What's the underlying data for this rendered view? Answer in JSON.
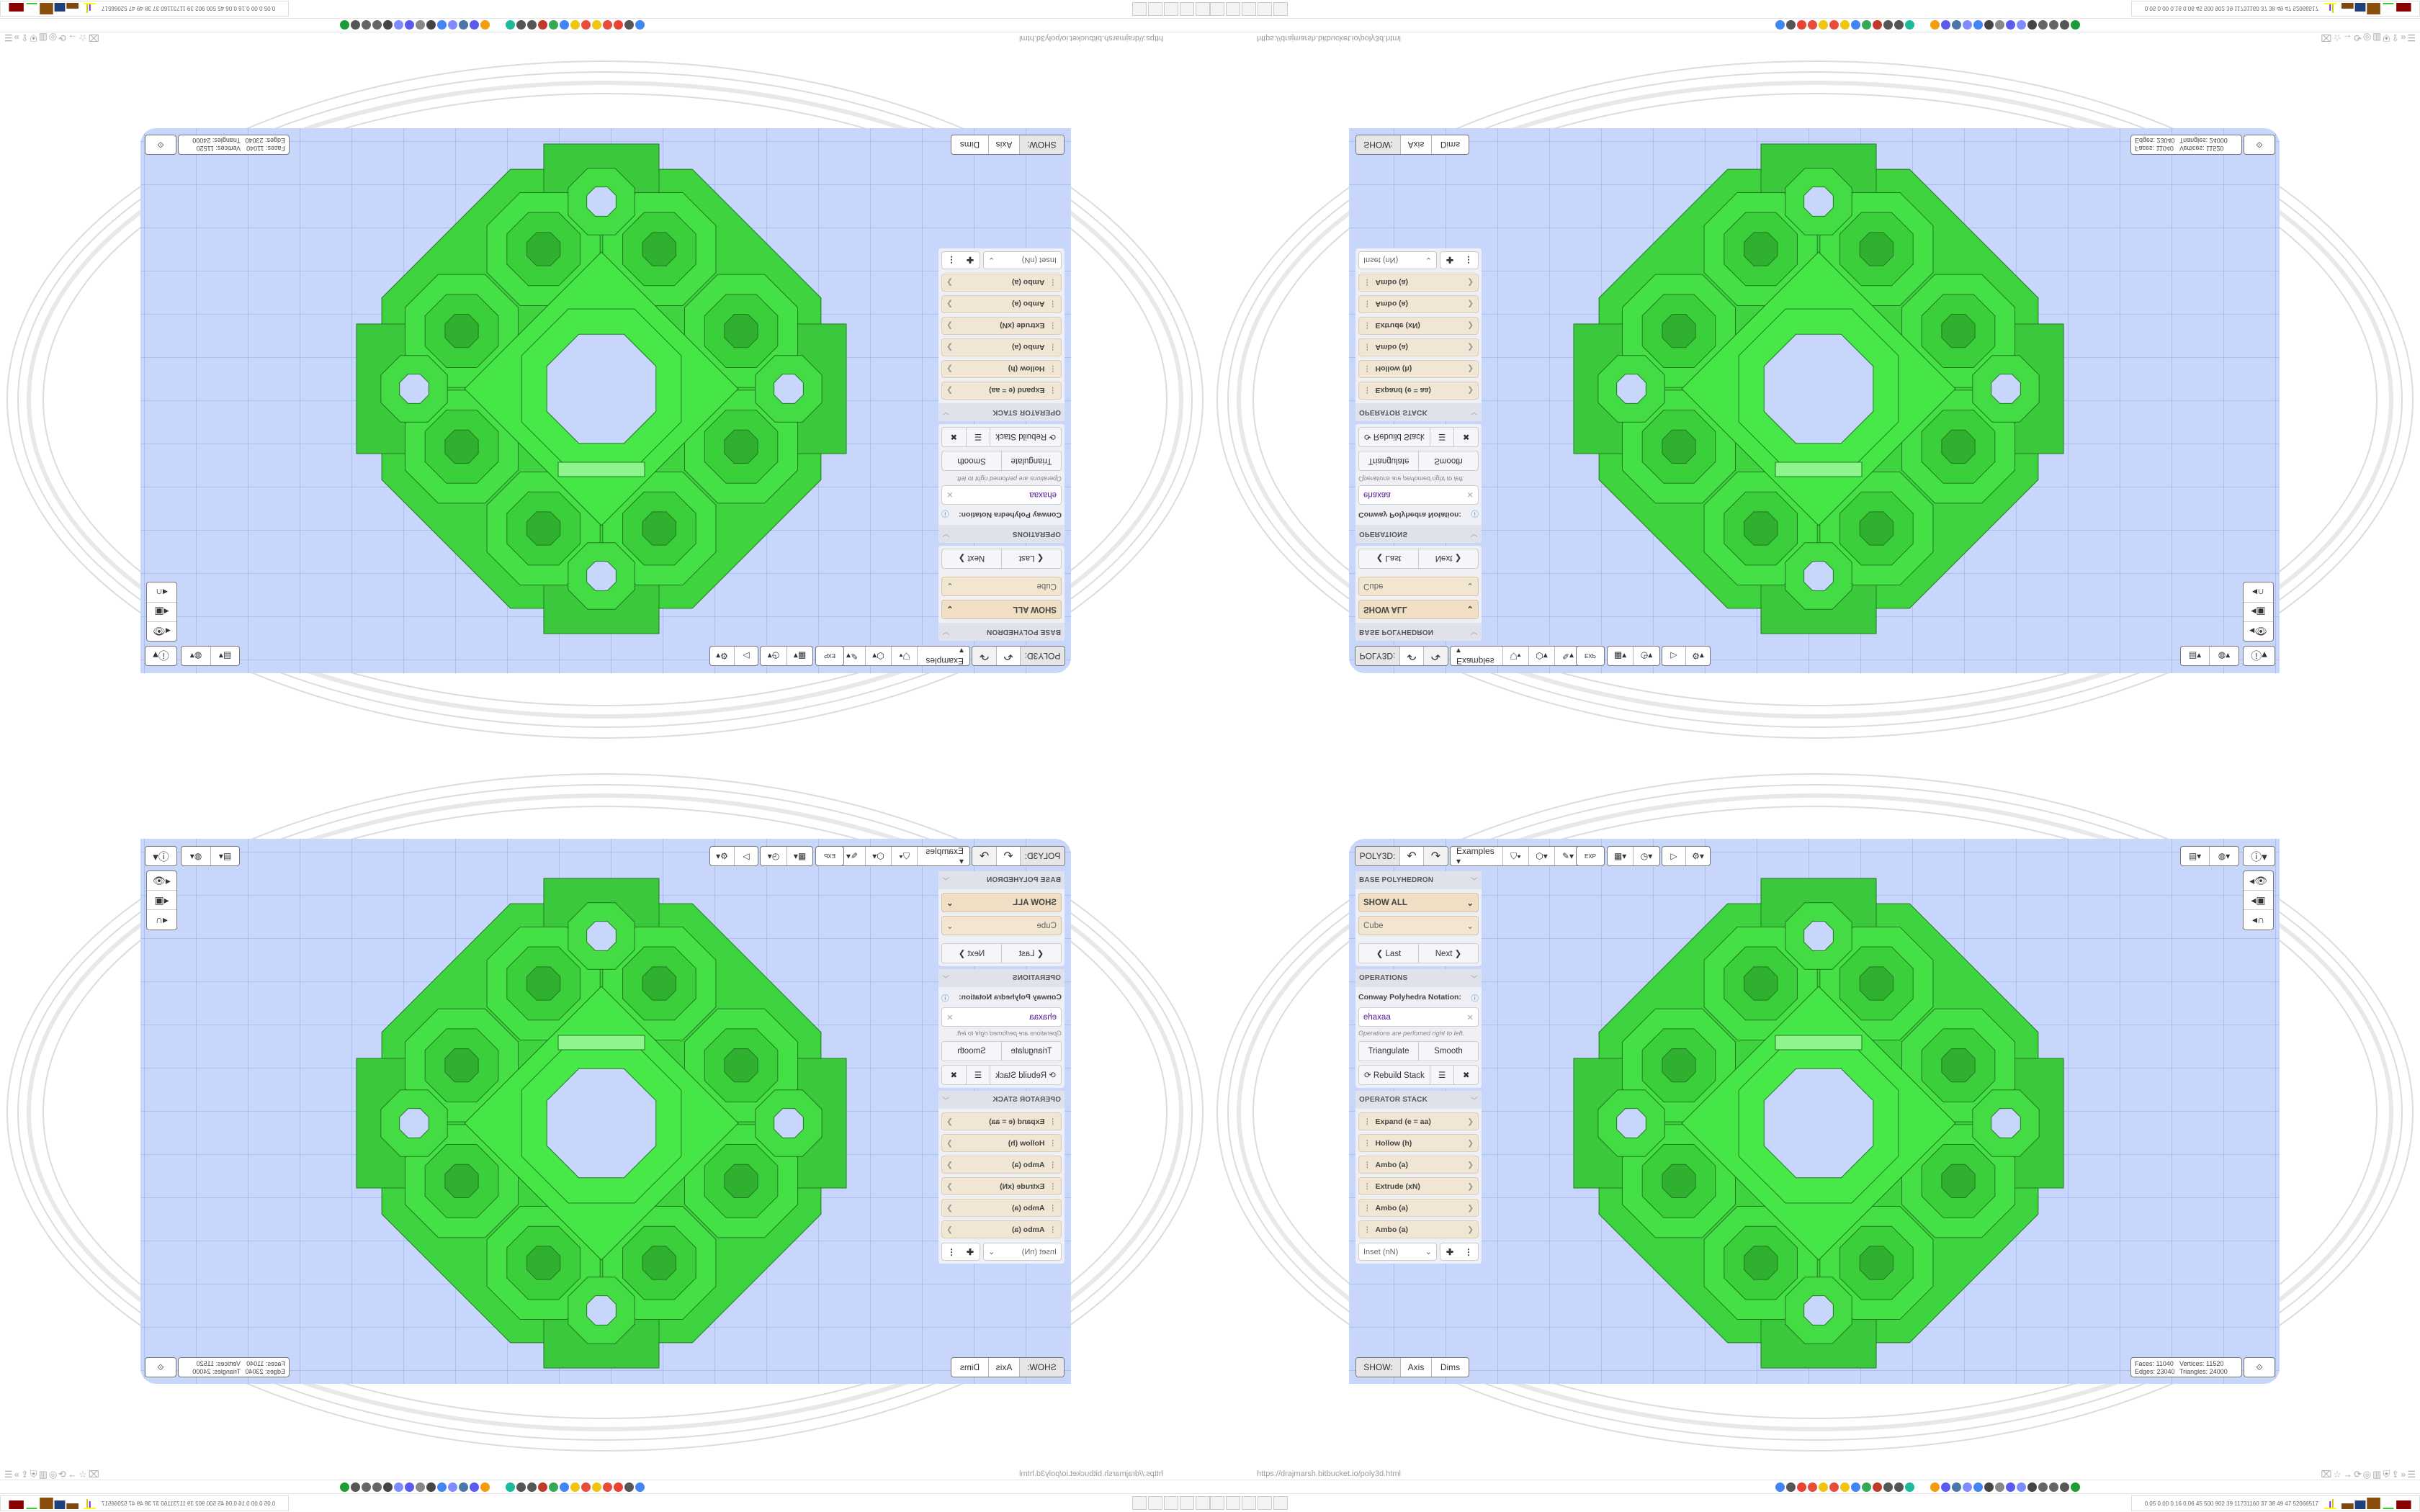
{
  "browser": {
    "url": "https://drajmarsh.bitbucket.io/poly3d.html",
    "toolbar_icons": [
      "translate-icon",
      "star-icon",
      "forward-icon",
      "reload-icon",
      "globe-icon",
      "trash-icon",
      "ublock-icon",
      "extension-icon",
      "more-icon",
      "menu-icon"
    ],
    "perf_stats": "0.05 0.00 0.16 0.06 45 500 902 39 11731160 37 38 49 47 52066517",
    "bookmark_colors": [
      "#4285f4",
      "#555",
      "#ea4335",
      "#e74c3c",
      "#f1c40f",
      "#e74c3c",
      "#f1c40f",
      "#4285f4",
      "#34a853",
      "#c0392b",
      "#555",
      "#555",
      "#1abc9c",
      "#f39c12",
      "#5b5bf0",
      "#4a76a8",
      "#7f8cff",
      "#4285f4",
      "#444",
      "#888",
      "#5b5bf0",
      "#7f8cff",
      "#444",
      "#666",
      "#666",
      "#555",
      "#1a9c3a"
    ],
    "taskbar_icons": [
      "notepad-icon",
      "notepad-icon",
      "firefox-icon",
      "floppy-32-icon",
      "terminal-icon",
      "terminal-icon",
      "floppy-64-icon",
      "firefox-icon",
      "notepad-icon",
      "notepad-icon"
    ]
  },
  "app": {
    "toolbar": {
      "title": "POLY3D:",
      "undo": "↶",
      "redo": "↷",
      "examples": "Examples ▾",
      "icons": [
        "paint-bucket-icon",
        "cube-play-icon",
        "edit-lines-icon",
        "export-icon",
        "calendar-icon",
        "clock-icon",
        "play-icon",
        "settings-icon"
      ],
      "export_label": "EXP"
    },
    "base": {
      "header": "BASE POLYHEDRON",
      "filter": "SHOW ALL",
      "shape": "Cube",
      "last": "❮ Last",
      "next": "Next ❯"
    },
    "operations": {
      "header": "OPERATIONS",
      "notation_label": "Conway Polyhedra Notation:",
      "notation_value": "ehaxaa",
      "hint": "Operations are perfomed right to left.",
      "triangulate": "Triangulate",
      "smooth": "Smooth",
      "rebuild": "⟳ Rebuild Stack"
    },
    "operator_stack": {
      "header": "OPERATOR STACK",
      "items": [
        "Expand (e = aa)",
        "Hollow (h)",
        "Ambo (a)",
        "Extrude (xN)",
        "Ambo (a)",
        "Ambo (a)"
      ],
      "add_select": "Inset (nN)"
    },
    "show": {
      "label": "SHOW:",
      "axis": "Axis",
      "dims": "Dims"
    },
    "stats": {
      "faces": "Faces:  11040",
      "vertices": "Vertices:  11520",
      "edges": "Edges:  23040",
      "triangles": "Triangles: 24000"
    },
    "colors": {
      "viewport": "#c8d6fb",
      "model": "#44e044",
      "model_edge": "#1f7a1f"
    }
  }
}
